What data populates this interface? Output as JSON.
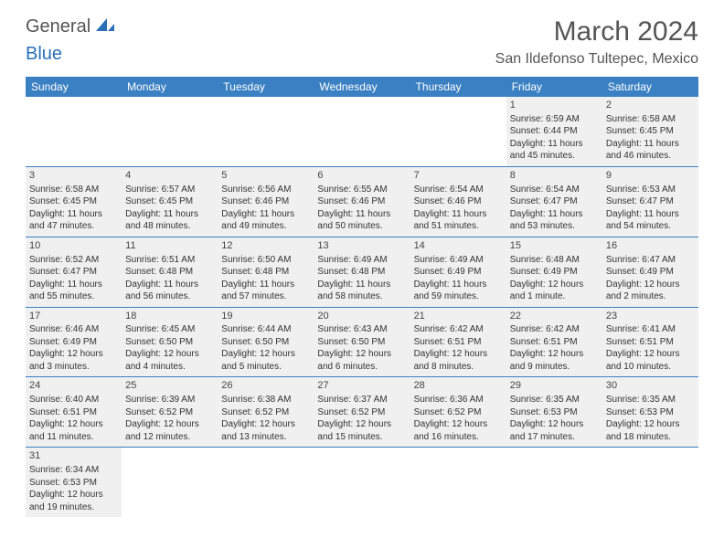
{
  "brand": {
    "general": "General",
    "blue": "Blue"
  },
  "title": "March 2024",
  "location": "San Ildefonso Tultepec, Mexico",
  "colors": {
    "header_bg": "#3a80c3",
    "header_text": "#ffffff",
    "cell_bg": "#f0f0f0",
    "body_text": "#333333",
    "rule": "#3a80c3"
  },
  "typography": {
    "title_fontsize": 30,
    "location_fontsize": 16,
    "dayhead_fontsize": 12,
    "cell_fontsize": 10
  },
  "layout": {
    "columns": 7,
    "rows": 6,
    "start_day_index": 5
  },
  "day_names": [
    "Sunday",
    "Monday",
    "Tuesday",
    "Wednesday",
    "Thursday",
    "Friday",
    "Saturday"
  ],
  "days": [
    {
      "n": 1,
      "sunrise": "6:59 AM",
      "sunset": "6:44 PM",
      "day_h": 11,
      "day_m": 45
    },
    {
      "n": 2,
      "sunrise": "6:58 AM",
      "sunset": "6:45 PM",
      "day_h": 11,
      "day_m": 46
    },
    {
      "n": 3,
      "sunrise": "6:58 AM",
      "sunset": "6:45 PM",
      "day_h": 11,
      "day_m": 47
    },
    {
      "n": 4,
      "sunrise": "6:57 AM",
      "sunset": "6:45 PM",
      "day_h": 11,
      "day_m": 48
    },
    {
      "n": 5,
      "sunrise": "6:56 AM",
      "sunset": "6:46 PM",
      "day_h": 11,
      "day_m": 49
    },
    {
      "n": 6,
      "sunrise": "6:55 AM",
      "sunset": "6:46 PM",
      "day_h": 11,
      "day_m": 50
    },
    {
      "n": 7,
      "sunrise": "6:54 AM",
      "sunset": "6:46 PM",
      "day_h": 11,
      "day_m": 51
    },
    {
      "n": 8,
      "sunrise": "6:54 AM",
      "sunset": "6:47 PM",
      "day_h": 11,
      "day_m": 53
    },
    {
      "n": 9,
      "sunrise": "6:53 AM",
      "sunset": "6:47 PM",
      "day_h": 11,
      "day_m": 54
    },
    {
      "n": 10,
      "sunrise": "6:52 AM",
      "sunset": "6:47 PM",
      "day_h": 11,
      "day_m": 55
    },
    {
      "n": 11,
      "sunrise": "6:51 AM",
      "sunset": "6:48 PM",
      "day_h": 11,
      "day_m": 56
    },
    {
      "n": 12,
      "sunrise": "6:50 AM",
      "sunset": "6:48 PM",
      "day_h": 11,
      "day_m": 57
    },
    {
      "n": 13,
      "sunrise": "6:49 AM",
      "sunset": "6:48 PM",
      "day_h": 11,
      "day_m": 58
    },
    {
      "n": 14,
      "sunrise": "6:49 AM",
      "sunset": "6:49 PM",
      "day_h": 11,
      "day_m": 59
    },
    {
      "n": 15,
      "sunrise": "6:48 AM",
      "sunset": "6:49 PM",
      "day_h": 12,
      "day_m": 1
    },
    {
      "n": 16,
      "sunrise": "6:47 AM",
      "sunset": "6:49 PM",
      "day_h": 12,
      "day_m": 2
    },
    {
      "n": 17,
      "sunrise": "6:46 AM",
      "sunset": "6:49 PM",
      "day_h": 12,
      "day_m": 3
    },
    {
      "n": 18,
      "sunrise": "6:45 AM",
      "sunset": "6:50 PM",
      "day_h": 12,
      "day_m": 4
    },
    {
      "n": 19,
      "sunrise": "6:44 AM",
      "sunset": "6:50 PM",
      "day_h": 12,
      "day_m": 5
    },
    {
      "n": 20,
      "sunrise": "6:43 AM",
      "sunset": "6:50 PM",
      "day_h": 12,
      "day_m": 6
    },
    {
      "n": 21,
      "sunrise": "6:42 AM",
      "sunset": "6:51 PM",
      "day_h": 12,
      "day_m": 8
    },
    {
      "n": 22,
      "sunrise": "6:42 AM",
      "sunset": "6:51 PM",
      "day_h": 12,
      "day_m": 9
    },
    {
      "n": 23,
      "sunrise": "6:41 AM",
      "sunset": "6:51 PM",
      "day_h": 12,
      "day_m": 10
    },
    {
      "n": 24,
      "sunrise": "6:40 AM",
      "sunset": "6:51 PM",
      "day_h": 12,
      "day_m": 11
    },
    {
      "n": 25,
      "sunrise": "6:39 AM",
      "sunset": "6:52 PM",
      "day_h": 12,
      "day_m": 12
    },
    {
      "n": 26,
      "sunrise": "6:38 AM",
      "sunset": "6:52 PM",
      "day_h": 12,
      "day_m": 13
    },
    {
      "n": 27,
      "sunrise": "6:37 AM",
      "sunset": "6:52 PM",
      "day_h": 12,
      "day_m": 15
    },
    {
      "n": 28,
      "sunrise": "6:36 AM",
      "sunset": "6:52 PM",
      "day_h": 12,
      "day_m": 16
    },
    {
      "n": 29,
      "sunrise": "6:35 AM",
      "sunset": "6:53 PM",
      "day_h": 12,
      "day_m": 17
    },
    {
      "n": 30,
      "sunrise": "6:35 AM",
      "sunset": "6:53 PM",
      "day_h": 12,
      "day_m": 18
    },
    {
      "n": 31,
      "sunrise": "6:34 AM",
      "sunset": "6:53 PM",
      "day_h": 12,
      "day_m": 19
    }
  ],
  "labels": {
    "sunrise": "Sunrise:",
    "sunset": "Sunset:",
    "daylight": "Daylight:",
    "hours": "hours",
    "and": "and",
    "minute": "minute",
    "minutes": "minutes"
  }
}
